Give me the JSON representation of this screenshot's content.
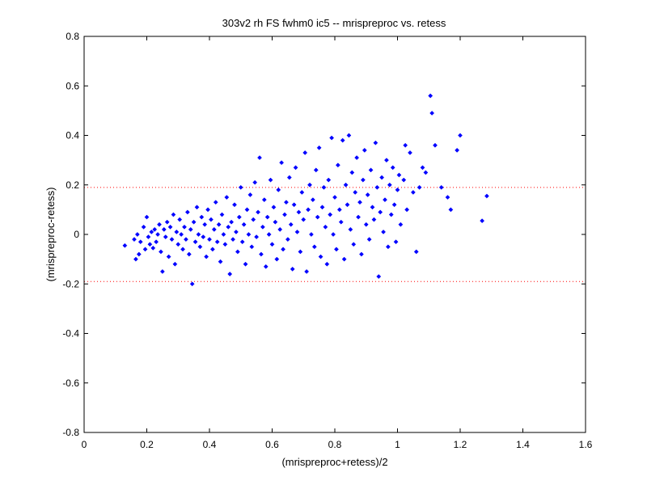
{
  "chart_data": {
    "type": "scatter",
    "title": "303v2 rh FS fwhm0 ic5 -- mrispreproc vs. retess",
    "xlabel": "(mrispreproc+retess)/2",
    "ylabel": "(mrispreproc-retess)",
    "xlim": [
      0,
      1.6
    ],
    "ylim": [
      -0.8,
      0.8
    ],
    "xticks": [
      "0",
      "0.2",
      "0.4",
      "0.6",
      "0.8",
      "1",
      "1.2",
      "1.4",
      "1.6"
    ],
    "yticks": [
      "-0.8",
      "-0.6",
      "-0.4",
      "-0.2",
      "0",
      "0.2",
      "0.4",
      "0.6",
      "0.8"
    ],
    "grid": false,
    "point_color": "#0000ff",
    "reference_lines": {
      "values": [
        0.19,
        -0.19
      ],
      "color": "#ff0000",
      "style": "dotted"
    },
    "series": [
      {
        "marker": "diamond",
        "points": [
          [
            0.13,
            -0.045
          ],
          [
            0.16,
            -0.02
          ],
          [
            0.165,
            -0.1
          ],
          [
            0.17,
            0.0
          ],
          [
            0.175,
            -0.08
          ],
          [
            0.18,
            -0.03
          ],
          [
            0.19,
            0.03
          ],
          [
            0.195,
            -0.06
          ],
          [
            0.2,
            0.07
          ],
          [
            0.205,
            -0.01
          ],
          [
            0.21,
            -0.04
          ],
          [
            0.215,
            0.01
          ],
          [
            0.22,
            -0.055
          ],
          [
            0.225,
            0.02
          ],
          [
            0.23,
            -0.03
          ],
          [
            0.235,
            0.0
          ],
          [
            0.24,
            0.04
          ],
          [
            0.245,
            -0.07
          ],
          [
            0.25,
            -0.15
          ],
          [
            0.255,
            0.02
          ],
          [
            0.26,
            -0.01
          ],
          [
            0.265,
            0.05
          ],
          [
            0.27,
            -0.09
          ],
          [
            0.275,
            0.03
          ],
          [
            0.28,
            -0.02
          ],
          [
            0.285,
            0.08
          ],
          [
            0.29,
            -0.12
          ],
          [
            0.295,
            0.01
          ],
          [
            0.3,
            -0.04
          ],
          [
            0.305,
            0.06
          ],
          [
            0.31,
            0.0
          ],
          [
            0.315,
            -0.06
          ],
          [
            0.32,
            0.03
          ],
          [
            0.325,
            -0.02
          ],
          [
            0.33,
            0.09
          ],
          [
            0.335,
            -0.08
          ],
          [
            0.34,
            0.02
          ],
          [
            0.345,
            -0.2
          ],
          [
            0.35,
            0.05
          ],
          [
            0.355,
            -0.03
          ],
          [
            0.36,
            0.11
          ],
          [
            0.365,
            0.0
          ],
          [
            0.37,
            -0.05
          ],
          [
            0.375,
            0.07
          ],
          [
            0.38,
            -0.01
          ],
          [
            0.385,
            0.04
          ],
          [
            0.39,
            -0.09
          ],
          [
            0.395,
            0.1
          ],
          [
            0.4,
            -0.02
          ],
          [
            0.405,
            0.06
          ],
          [
            0.41,
            -0.06
          ],
          [
            0.415,
            0.02
          ],
          [
            0.42,
            0.13
          ],
          [
            0.425,
            -0.03
          ],
          [
            0.43,
            0.04
          ],
          [
            0.435,
            -0.11
          ],
          [
            0.44,
            0.08
          ],
          [
            0.445,
            0.0
          ],
          [
            0.45,
            -0.04
          ],
          [
            0.455,
            0.15
          ],
          [
            0.46,
            0.03
          ],
          [
            0.465,
            -0.16
          ],
          [
            0.47,
            0.05
          ],
          [
            0.475,
            -0.02
          ],
          [
            0.48,
            0.12
          ],
          [
            0.485,
            0.01
          ],
          [
            0.49,
            -0.07
          ],
          [
            0.495,
            0.07
          ],
          [
            0.5,
            0.19
          ],
          [
            0.505,
            -0.03
          ],
          [
            0.51,
            0.04
          ],
          [
            0.515,
            -0.12
          ],
          [
            0.52,
            0.1
          ],
          [
            0.525,
            0.0
          ],
          [
            0.53,
            0.16
          ],
          [
            0.535,
            -0.05
          ],
          [
            0.54,
            0.06
          ],
          [
            0.545,
            0.21
          ],
          [
            0.55,
            -0.01
          ],
          [
            0.555,
            0.09
          ],
          [
            0.56,
            0.31
          ],
          [
            0.565,
            -0.08
          ],
          [
            0.57,
            0.03
          ],
          [
            0.575,
            0.14
          ],
          [
            0.58,
            -0.13
          ],
          [
            0.585,
            0.07
          ],
          [
            0.59,
            0.0
          ],
          [
            0.595,
            0.22
          ],
          [
            0.6,
            -0.04
          ],
          [
            0.605,
            0.11
          ],
          [
            0.61,
            0.05
          ],
          [
            0.615,
            -0.1
          ],
          [
            0.62,
            0.18
          ],
          [
            0.625,
            0.02
          ],
          [
            0.63,
            0.29
          ],
          [
            0.635,
            -0.06
          ],
          [
            0.64,
            0.08
          ],
          [
            0.645,
            0.13
          ],
          [
            0.65,
            -0.02
          ],
          [
            0.655,
            0.23
          ],
          [
            0.66,
            0.04
          ],
          [
            0.665,
            -0.14
          ],
          [
            0.67,
            0.12
          ],
          [
            0.675,
            0.27
          ],
          [
            0.68,
            0.01
          ],
          [
            0.685,
            0.09
          ],
          [
            0.69,
            -0.07
          ],
          [
            0.695,
            0.17
          ],
          [
            0.7,
            0.06
          ],
          [
            0.705,
            0.33
          ],
          [
            0.71,
            -0.15
          ],
          [
            0.715,
            0.1
          ],
          [
            0.72,
            0.2
          ],
          [
            0.725,
            0.0
          ],
          [
            0.73,
            0.14
          ],
          [
            0.735,
            -0.05
          ],
          [
            0.74,
            0.26
          ],
          [
            0.745,
            0.07
          ],
          [
            0.75,
            0.35
          ],
          [
            0.755,
            -0.09
          ],
          [
            0.76,
            0.11
          ],
          [
            0.765,
            0.19
          ],
          [
            0.77,
            0.03
          ],
          [
            0.775,
            -0.12
          ],
          [
            0.78,
            0.22
          ],
          [
            0.785,
            0.08
          ],
          [
            0.79,
            0.39
          ],
          [
            0.795,
            0.0
          ],
          [
            0.8,
            0.15
          ],
          [
            0.805,
            -0.06
          ],
          [
            0.81,
            0.28
          ],
          [
            0.815,
            0.1
          ],
          [
            0.82,
            0.05
          ],
          [
            0.825,
            0.38
          ],
          [
            0.83,
            -0.1
          ],
          [
            0.835,
            0.2
          ],
          [
            0.84,
            0.12
          ],
          [
            0.845,
            0.4
          ],
          [
            0.85,
            0.02
          ],
          [
            0.855,
            0.25
          ],
          [
            0.86,
            -0.04
          ],
          [
            0.865,
            0.17
          ],
          [
            0.87,
            0.31
          ],
          [
            0.875,
            0.07
          ],
          [
            0.88,
            0.13
          ],
          [
            0.885,
            -0.08
          ],
          [
            0.89,
            0.22
          ],
          [
            0.895,
            0.34
          ],
          [
            0.9,
            0.04
          ],
          [
            0.905,
            0.16
          ],
          [
            0.91,
            -0.02
          ],
          [
            0.915,
            0.26
          ],
          [
            0.92,
            0.11
          ],
          [
            0.925,
            0.06
          ],
          [
            0.93,
            0.37
          ],
          [
            0.935,
            0.19
          ],
          [
            0.94,
            -0.17
          ],
          [
            0.945,
            0.09
          ],
          [
            0.95,
            0.23
          ],
          [
            0.955,
            0.01
          ],
          [
            0.96,
            0.14
          ],
          [
            0.965,
            0.3
          ],
          [
            0.97,
            -0.05
          ],
          [
            0.975,
            0.2
          ],
          [
            0.98,
            0.08
          ],
          [
            0.985,
            0.27
          ],
          [
            0.99,
            0.12
          ],
          [
            0.995,
            -0.03
          ],
          [
            1.0,
            0.18
          ],
          [
            1.005,
            0.24
          ],
          [
            1.01,
            0.04
          ],
          [
            1.02,
            0.22
          ],
          [
            1.025,
            0.36
          ],
          [
            1.03,
            0.1
          ],
          [
            1.04,
            0.33
          ],
          [
            1.05,
            0.17
          ],
          [
            1.06,
            -0.07
          ],
          [
            1.07,
            0.19
          ],
          [
            1.08,
            0.27
          ],
          [
            1.09,
            0.25
          ],
          [
            1.105,
            0.56
          ],
          [
            1.11,
            0.49
          ],
          [
            1.12,
            0.36
          ],
          [
            1.14,
            0.19
          ],
          [
            1.16,
            0.15
          ],
          [
            1.17,
            0.1
          ],
          [
            1.19,
            0.34
          ],
          [
            1.2,
            0.4
          ],
          [
            1.27,
            0.055
          ],
          [
            1.285,
            0.155
          ]
        ]
      }
    ]
  }
}
